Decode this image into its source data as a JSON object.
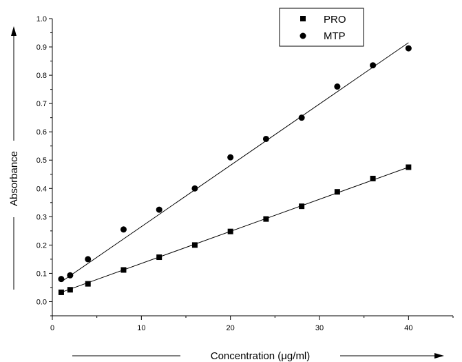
{
  "chart_data": {
    "type": "scatter",
    "xlabel": "Concentration (μg/ml)",
    "ylabel": "Absorbance",
    "xlim": [
      0,
      45
    ],
    "ylim": [
      -0.05,
      1.0
    ],
    "xticks": [
      0,
      10,
      20,
      30,
      40
    ],
    "yticks": [
      0.0,
      0.1,
      0.2,
      0.3,
      0.4,
      0.5,
      0.6,
      0.7,
      0.8,
      0.9,
      1.0
    ],
    "xtick_labels": [
      "0",
      "10",
      "20",
      "30",
      "40"
    ],
    "ytick_labels": [
      "0.0",
      "0.1",
      "0.2",
      "0.3",
      "0.4",
      "0.5",
      "0.6",
      "0.7",
      "0.8",
      "0.9",
      "1.0"
    ],
    "grid": false,
    "legend_position": "top-right",
    "series": [
      {
        "name": "PRO",
        "marker": "square",
        "color": "#000000",
        "x": [
          1,
          2,
          4,
          8,
          12,
          16,
          20,
          24,
          28,
          32,
          36,
          40
        ],
        "y": [
          0.033,
          0.042,
          0.063,
          0.112,
          0.157,
          0.2,
          0.248,
          0.292,
          0.337,
          0.388,
          0.435,
          0.475
        ],
        "fit": {
          "x": [
            1,
            40
          ],
          "y": [
            0.033,
            0.475
          ]
        }
      },
      {
        "name": "MTP",
        "marker": "circle",
        "color": "#000000",
        "x": [
          1,
          2,
          4,
          8,
          12,
          16,
          20,
          24,
          28,
          32,
          36,
          40
        ],
        "y": [
          0.08,
          0.093,
          0.15,
          0.255,
          0.325,
          0.4,
          0.51,
          0.575,
          0.65,
          0.76,
          0.835,
          0.895
        ],
        "fit": {
          "x": [
            1,
            40
          ],
          "y": [
            0.07,
            0.915
          ]
        }
      }
    ]
  }
}
